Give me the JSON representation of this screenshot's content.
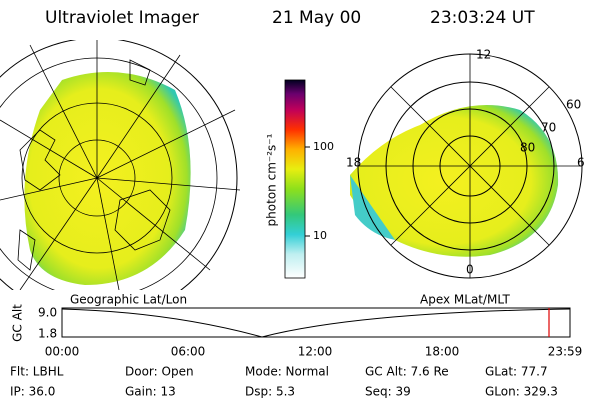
{
  "header": {
    "title": "Ultraviolet Imager",
    "date": "21 May 00",
    "time": "23:03:24 UT"
  },
  "colorbar": {
    "unit_label": "photon cm⁻²s⁻¹",
    "ticks": [
      "100",
      "10"
    ]
  },
  "left_panel": {
    "label": "Geographic Lat/Lon"
  },
  "right_panel": {
    "label": "Apex MLat/MLT",
    "mlt_labels": {
      "top": "12",
      "right": "6",
      "bottom": "0",
      "left": "18"
    },
    "lat_labels": [
      "60",
      "70",
      "80"
    ]
  },
  "timeline": {
    "axis_label": "GC Alt",
    "y_labels": [
      "9.0",
      "1.8"
    ],
    "x_labels": [
      "00:00",
      "06:00",
      "12:00",
      "18:00",
      "23:59"
    ]
  },
  "info": {
    "rows": [
      [
        "Flt: LBHL",
        "Door: Open",
        "Mode: Normal",
        "GC Alt: 7.6 Re",
        "GLat: 77.7"
      ],
      [
        "IP: 36.0",
        "Gain: 13",
        "Dsp: 5.3",
        "Seq: 39",
        "GLon: 329.3"
      ]
    ]
  }
}
